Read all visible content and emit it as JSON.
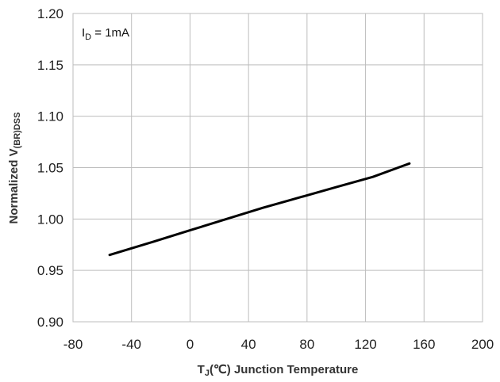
{
  "chart_data": {
    "type": "line",
    "title": "",
    "xlabel": {
      "main": "T",
      "sub": "J",
      "rest": "(℃) Junction Temperature"
    },
    "ylabel": {
      "main": "Normalized V",
      "sub": "(BR)DSS"
    },
    "xlim": [
      -80,
      200
    ],
    "ylim": [
      0.9,
      1.2
    ],
    "xticks": [
      -80,
      -40,
      0,
      40,
      80,
      120,
      160,
      200
    ],
    "yticks": [
      0.9,
      0.95,
      1.0,
      1.05,
      1.1,
      1.15,
      1.2
    ],
    "xtick_labels": [
      "-80",
      "-40",
      "0",
      "40",
      "80",
      "120",
      "160",
      "200"
    ],
    "ytick_labels": [
      "0.90",
      "0.95",
      "1.00",
      "1.05",
      "1.10",
      "1.15",
      "1.20"
    ],
    "grid": true,
    "annotation": {
      "main": "I",
      "sub": "D",
      "rest": " = 1mA"
    },
    "series": [
      {
        "color": "#000000",
        "x": [
          -55,
          -25,
          0,
          25,
          50,
          75,
          100,
          125,
          150
        ],
        "y": [
          0.965,
          0.978,
          0.989,
          1.0,
          1.011,
          1.021,
          1.031,
          1.041,
          1.054
        ]
      }
    ]
  }
}
